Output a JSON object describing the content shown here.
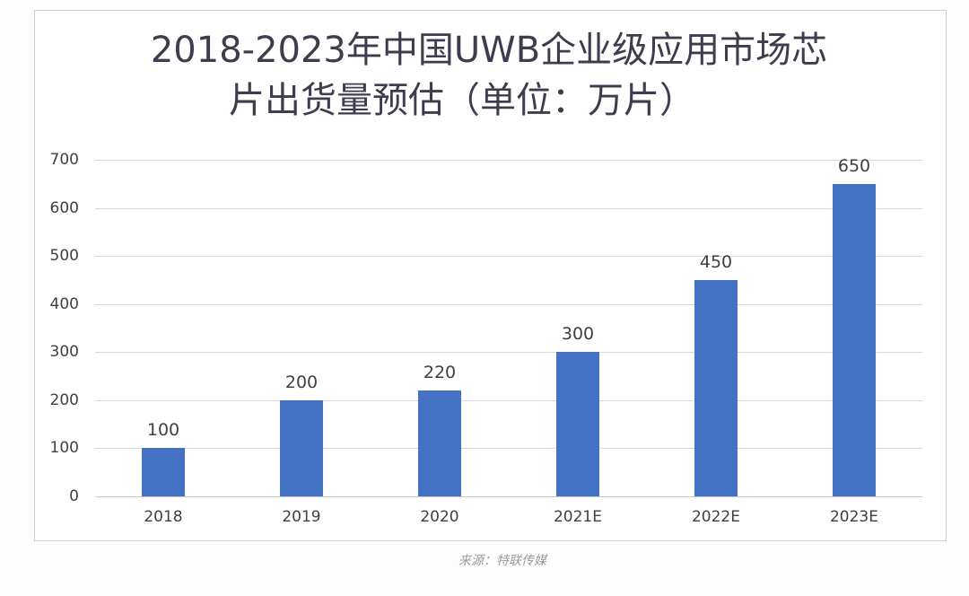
{
  "chart_data": {
    "type": "bar",
    "title": "2018-2023年中国UWB企业级应用市场芯片出货量预估（单位：万片）",
    "title_lines": [
      "2018-2023年中国UWB企业级应用市场芯",
      "片出货量预估（单位：万片）"
    ],
    "categories": [
      "2018",
      "2019",
      "2020",
      "2021E",
      "2022E",
      "2023E"
    ],
    "values": [
      100,
      200,
      220,
      300,
      450,
      650
    ],
    "data_labels": [
      "100",
      "200",
      "220",
      "300",
      "450",
      "650"
    ],
    "xlabel": "",
    "ylabel": "",
    "ylim": [
      0,
      700
    ],
    "yticks": [
      "0",
      "100",
      "200",
      "300",
      "400",
      "500",
      "600",
      "700"
    ],
    "grid": true,
    "legend": null,
    "bar_color": "#4472c4",
    "source": "来源：特联传媒"
  }
}
